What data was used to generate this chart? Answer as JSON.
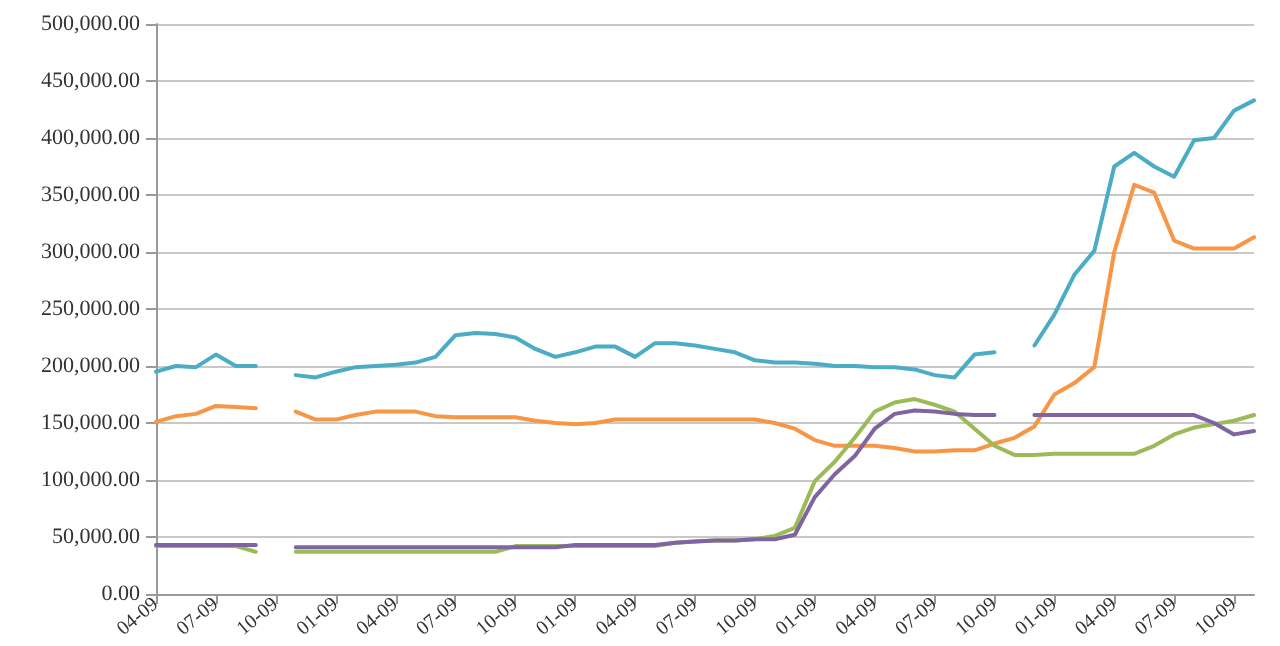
{
  "chart_data": {
    "type": "line",
    "categories": [
      "04-09",
      null,
      null,
      "07-09",
      null,
      null,
      "10-09",
      null,
      null,
      "01-09",
      null,
      null,
      "04-09",
      null,
      null,
      "07-09",
      null,
      null,
      "10-09",
      null,
      null,
      "01-09",
      null,
      null,
      "04-09",
      null,
      null,
      "07-09",
      null,
      null,
      "10-09",
      null,
      null,
      "01-09",
      null,
      null,
      "04-09",
      null,
      null,
      "07-09",
      null,
      null,
      "10-09",
      null,
      null,
      "01-09",
      null,
      null,
      "04-09",
      null,
      null,
      "07-09",
      null,
      null,
      "10-09",
      null
    ],
    "series": [
      {
        "color": "#4bacc6",
        "values": [
          195000,
          200000,
          199000,
          210000,
          200000,
          200000,
          null,
          192000,
          190000,
          195000,
          199000,
          200000,
          201000,
          203000,
          208000,
          227000,
          229000,
          228000,
          225000,
          215000,
          208000,
          212000,
          217000,
          217000,
          208000,
          220000,
          220000,
          218000,
          215000,
          212000,
          205000,
          203000,
          203000,
          202000,
          200000,
          200000,
          199000,
          199000,
          197000,
          192000,
          190000,
          210000,
          212000,
          null,
          218000,
          245000,
          280000,
          301000,
          375000,
          387000,
          375000,
          366000,
          398000,
          400000,
          424000,
          433000
        ]
      },
      {
        "color": "#f79646",
        "values": [
          151000,
          156000,
          158000,
          165000,
          164000,
          163000,
          null,
          160000,
          153000,
          153000,
          157000,
          160000,
          160000,
          160000,
          156000,
          155000,
          155000,
          155000,
          155000,
          152000,
          150000,
          149000,
          150000,
          153000,
          153000,
          153000,
          153000,
          153000,
          153000,
          153000,
          153000,
          150000,
          145000,
          135000,
          130000,
          130000,
          130000,
          128000,
          125000,
          125000,
          126000,
          126000,
          132000,
          137000,
          147000,
          175000,
          185000,
          199000,
          300000,
          359000,
          352000,
          310000,
          303000,
          303000,
          303000,
          313000
        ]
      },
      {
        "color": "#9bbb59",
        "values": [
          42000,
          42000,
          42000,
          42000,
          42000,
          37000,
          null,
          37000,
          37000,
          37000,
          37000,
          37000,
          37000,
          37000,
          37000,
          37000,
          37000,
          37000,
          42000,
          42000,
          42000,
          42000,
          42000,
          42000,
          42000,
          42000,
          45000,
          46000,
          47000,
          47000,
          48000,
          51000,
          58000,
          99000,
          116000,
          137000,
          160000,
          168000,
          171000,
          166000,
          160000,
          145000,
          130000,
          122000,
          122000,
          123000,
          123000,
          123000,
          123000,
          123000,
          130000,
          140000,
          146000,
          149000,
          152000,
          157000
        ]
      },
      {
        "color": "#8064a2",
        "values": [
          43000,
          43000,
          43000,
          43000,
          43000,
          43000,
          null,
          41000,
          41000,
          41000,
          41000,
          41000,
          41000,
          41000,
          41000,
          41000,
          41000,
          41000,
          41000,
          41000,
          41000,
          43000,
          43000,
          43000,
          43000,
          43000,
          45000,
          46000,
          47000,
          47000,
          48000,
          48000,
          52000,
          85000,
          105000,
          121000,
          145000,
          158000,
          161000,
          160000,
          158000,
          157000,
          157000,
          null,
          157000,
          157000,
          157000,
          157000,
          157000,
          157000,
          157000,
          157000,
          157000,
          150000,
          140000,
          143000
        ]
      }
    ],
    "ylim": [
      0,
      500000
    ],
    "yticks": [
      {
        "value": 0,
        "label": "0.00"
      },
      {
        "value": 50000,
        "label": "50,000.00"
      },
      {
        "value": 100000,
        "label": "100,000.00"
      },
      {
        "value": 150000,
        "label": "150,000.00"
      },
      {
        "value": 200000,
        "label": "200,000.00"
      },
      {
        "value": 250000,
        "label": "250,000.00"
      },
      {
        "value": 300000,
        "label": "300,000.00"
      },
      {
        "value": 350000,
        "label": "350,000.00"
      },
      {
        "value": 400000,
        "label": "400,000.00"
      },
      {
        "value": 450000,
        "label": "450,000.00"
      },
      {
        "value": 500000,
        "label": "500,000.00"
      }
    ],
    "grid": "y",
    "marker": "none",
    "line_style": "solid"
  }
}
